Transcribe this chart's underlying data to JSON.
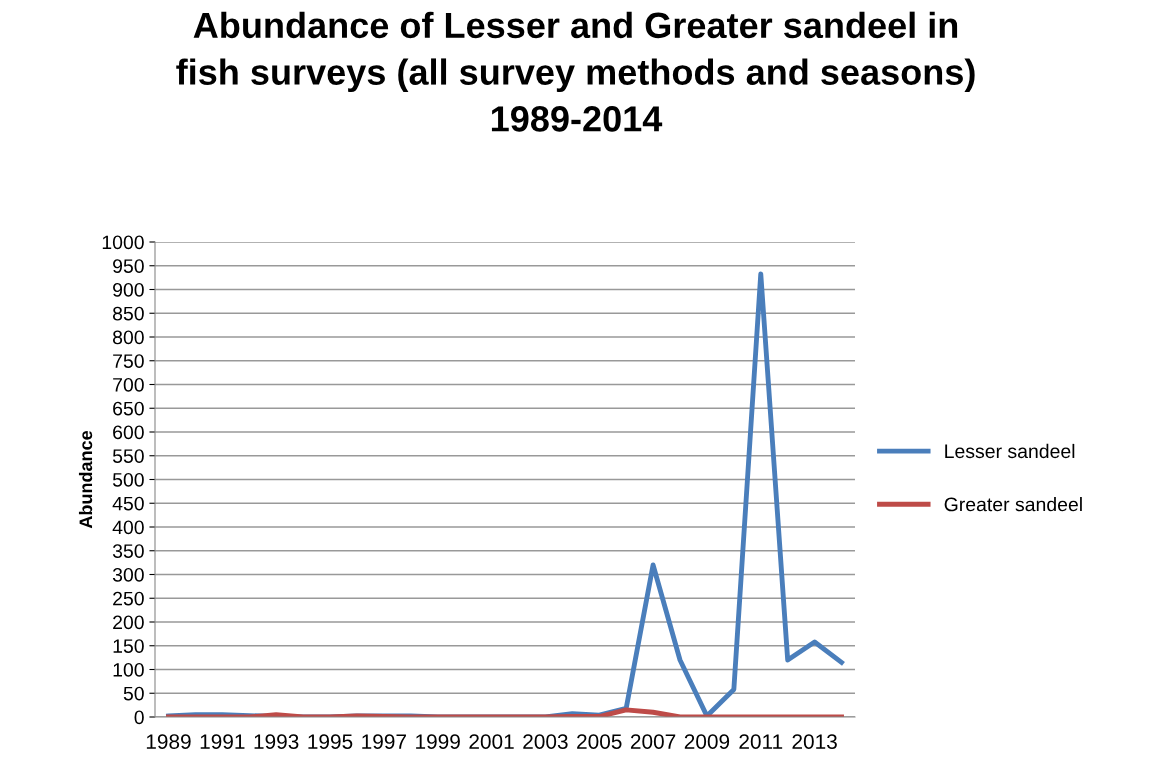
{
  "chart_data": {
    "type": "line",
    "title": "Abundance of Lesser and Greater sandeel in\nfish surveys (all survey methods and seasons)\n1989-2014",
    "ylabel": "Abundance",
    "categories": [
      "1989",
      null,
      "1991",
      null,
      "1993",
      null,
      "1995",
      null,
      "1997",
      null,
      "1999",
      null,
      "2001",
      null,
      "2003",
      null,
      "2005",
      null,
      "2007",
      null,
      "2009",
      null,
      "2011",
      null,
      "2013",
      null
    ],
    "series": [
      {
        "name": "Lesser sandeel",
        "color": "#4a7ebb",
        "values": [
          2,
          5,
          5,
          3,
          1,
          0,
          0,
          2,
          2,
          2,
          0,
          0,
          0,
          0,
          0,
          7,
          4,
          18,
          320,
          120,
          2,
          58,
          933,
          120,
          158,
          115
        ]
      },
      {
        "name": "Greater sandeel",
        "color": "#be4b48",
        "values": [
          0,
          0,
          0,
          0,
          5,
          0,
          0,
          2,
          1,
          0,
          0,
          0,
          0,
          0,
          0,
          1,
          1,
          15,
          10,
          0,
          0,
          0,
          0,
          0,
          0,
          0
        ]
      }
    ],
    "ylim": [
      0,
      1000
    ],
    "yticks": [
      0,
      50,
      100,
      150,
      200,
      250,
      300,
      350,
      400,
      450,
      500,
      550,
      600,
      650,
      700,
      750,
      800,
      850,
      900,
      950,
      1000
    ],
    "grid": "y",
    "legend": "right",
    "marker": "none",
    "line_style": "solid"
  }
}
